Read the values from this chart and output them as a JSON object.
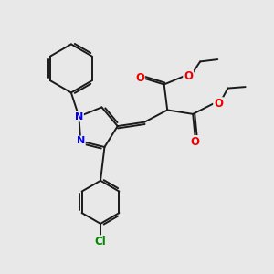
{
  "bg_color": "#e8e8e8",
  "bond_color": "#1a1a1a",
  "N_color": "#0000ee",
  "O_color": "#ee0000",
  "Cl_color": "#008800",
  "lw": 1.4,
  "figsize": [
    3.0,
    3.0
  ],
  "dpi": 100,
  "xlim": [
    0,
    10
  ],
  "ylim": [
    0,
    10
  ]
}
